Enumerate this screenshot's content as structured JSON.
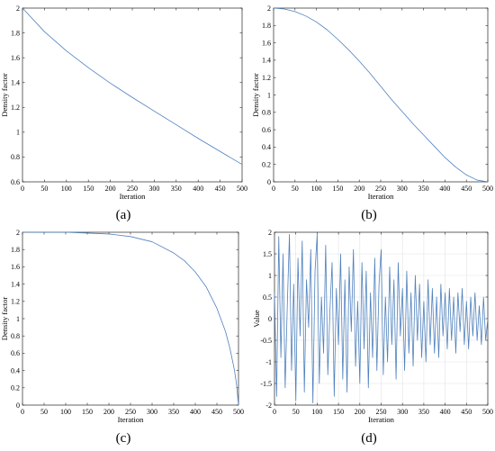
{
  "chart_data": [
    {
      "id": "a",
      "type": "line",
      "caption": "(a)",
      "xlabel": "Iteration",
      "ylabel": "Density factor",
      "xlim": [
        0,
        500
      ],
      "ylim": [
        0.6,
        2
      ],
      "xticks": [
        0,
        50,
        100,
        150,
        200,
        250,
        300,
        350,
        400,
        450,
        500
      ],
      "yticks": [
        0.6,
        0.8,
        1,
        1.2,
        1.4,
        1.6,
        1.8,
        2
      ],
      "grid": false,
      "series": [
        {
          "color": "#4f81bd",
          "x": [
            0,
            50,
            100,
            150,
            200,
            250,
            300,
            350,
            400,
            450,
            500
          ],
          "y": [
            2.0,
            1.81,
            1.655,
            1.52,
            1.395,
            1.28,
            1.17,
            1.06,
            0.95,
            0.845,
            0.74
          ]
        }
      ]
    },
    {
      "id": "b",
      "type": "line",
      "caption": "(b)",
      "xlabel": "Iteration",
      "ylabel": "Density factor",
      "xlim": [
        0,
        500
      ],
      "ylim": [
        0,
        2
      ],
      "xticks": [
        0,
        50,
        100,
        150,
        200,
        250,
        300,
        350,
        400,
        450,
        500
      ],
      "yticks": [
        0,
        0.2,
        0.4,
        0.6,
        0.8,
        1,
        1.2,
        1.4,
        1.6,
        1.8,
        2
      ],
      "grid": false,
      "series": [
        {
          "color": "#4f81bd",
          "x": [
            0,
            25,
            50,
            75,
            100,
            125,
            150,
            175,
            200,
            225,
            250,
            275,
            300,
            325,
            350,
            375,
            400,
            425,
            450,
            475,
            500
          ],
          "y": [
            2.0,
            1.99,
            1.96,
            1.91,
            1.84,
            1.75,
            1.64,
            1.52,
            1.39,
            1.25,
            1.1,
            0.95,
            0.81,
            0.67,
            0.54,
            0.41,
            0.28,
            0.17,
            0.08,
            0.02,
            0.0
          ]
        }
      ]
    },
    {
      "id": "c",
      "type": "line",
      "caption": "(c)",
      "xlabel": "Iteration",
      "ylabel": "Density factor",
      "xlim": [
        0,
        500
      ],
      "ylim": [
        0,
        2
      ],
      "xticks": [
        0,
        50,
        100,
        150,
        200,
        250,
        300,
        350,
        400,
        450,
        500
      ],
      "yticks": [
        0,
        0.2,
        0.4,
        0.6,
        0.8,
        1,
        1.2,
        1.4,
        1.6,
        1.8,
        2
      ],
      "grid": false,
      "series": [
        {
          "color": "#4f81bd",
          "x": [
            0,
            50,
            100,
            150,
            200,
            250,
            300,
            350,
            375,
            400,
            425,
            450,
            470,
            480,
            490,
            495,
            500
          ],
          "y": [
            2.0,
            2.0,
            2.0,
            1.99,
            1.98,
            1.95,
            1.89,
            1.76,
            1.67,
            1.54,
            1.37,
            1.12,
            0.85,
            0.66,
            0.42,
            0.26,
            0.0
          ]
        }
      ]
    },
    {
      "id": "d",
      "type": "line",
      "caption": "(d)",
      "xlabel": "Iteration",
      "ylabel": "Value",
      "xlim": [
        0,
        500
      ],
      "ylim": [
        -2,
        2
      ],
      "xticks": [
        0,
        50,
        100,
        150,
        200,
        250,
        300,
        350,
        400,
        450,
        500
      ],
      "yticks": [
        -2,
        -1.5,
        -1,
        -0.5,
        0,
        0.5,
        1,
        1.5,
        2
      ],
      "grid": true,
      "series": [
        {
          "color": "#4f81bd",
          "x": [
            0,
            5,
            10,
            15,
            20,
            25,
            30,
            35,
            40,
            45,
            50,
            55,
            60,
            65,
            70,
            75,
            80,
            85,
            90,
            95,
            100,
            105,
            110,
            115,
            120,
            125,
            130,
            135,
            140,
            145,
            150,
            155,
            160,
            165,
            170,
            175,
            180,
            185,
            190,
            195,
            200,
            205,
            210,
            215,
            220,
            225,
            230,
            235,
            240,
            245,
            250,
            255,
            260,
            265,
            270,
            275,
            280,
            285,
            290,
            295,
            300,
            305,
            310,
            315,
            320,
            325,
            330,
            335,
            340,
            345,
            350,
            355,
            360,
            365,
            370,
            375,
            380,
            385,
            390,
            395,
            400,
            405,
            410,
            415,
            420,
            425,
            430,
            435,
            440,
            445,
            450,
            455,
            460,
            465,
            470,
            475,
            480,
            485,
            490,
            495,
            500
          ],
          "y": [
            0.6,
            -1.8,
            1.9,
            -0.9,
            1.5,
            -1.6,
            0.3,
            1.95,
            -1.2,
            0.8,
            -1.9,
            1.4,
            -0.4,
            1.8,
            -1.7,
            0.9,
            -0.2,
            1.6,
            -1.95,
            1.1,
            1.95,
            -1.5,
            0.5,
            -0.8,
            1.7,
            -1.3,
            0.2,
            1.3,
            -1.8,
            0.7,
            -0.6,
            1.5,
            -1.4,
            0.9,
            -1.7,
            1.2,
            -0.3,
            1.6,
            -1.1,
            0.4,
            -1.5,
            1.3,
            -0.7,
            1.1,
            -1.6,
            0.6,
            -0.9,
            1.4,
            -1.2,
            0.8,
            1.6,
            -1.3,
            0.5,
            -1.0,
            1.2,
            -0.6,
            0.9,
            -1.4,
            1.3,
            -0.4,
            0.7,
            -1.2,
            1.1,
            -0.8,
            0.6,
            -1.1,
            1.0,
            -0.5,
            0.8,
            -0.9,
            0.4,
            -1.0,
            0.9,
            -0.6,
            0.7,
            -0.8,
            0.5,
            -0.9,
            0.8,
            -0.4,
            0.6,
            -0.7,
            0.7,
            -0.5,
            0.5,
            -0.8,
            0.6,
            -0.3,
            0.7,
            -0.6,
            0.4,
            -0.7,
            0.5,
            -0.4,
            0.6,
            -0.5,
            0.3,
            -0.6,
            0.5,
            -0.5,
            0.0
          ]
        }
      ]
    }
  ]
}
